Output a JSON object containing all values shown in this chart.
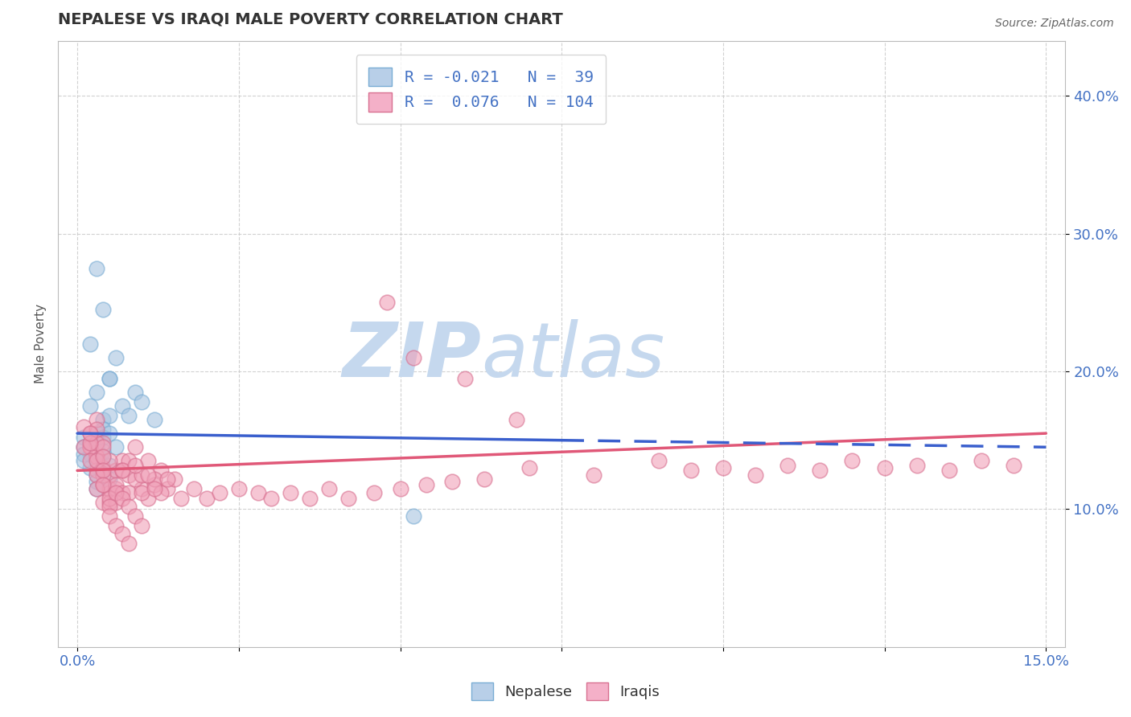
{
  "title": "NEPALESE VS IRAQI MALE POVERTY CORRELATION CHART",
  "source": "Source: ZipAtlas.com",
  "ylabel": "Male Poverty",
  "y_ticks": [
    0.1,
    0.2,
    0.3,
    0.4
  ],
  "y_tick_labels": [
    "10.0%",
    "20.0%",
    "30.0%",
    "40.0%"
  ],
  "x_lim": [
    0.0,
    0.15
  ],
  "y_lim": [
    0.0,
    0.44
  ],
  "nepalese_color": "#a8c4e0",
  "iraqi_color": "#f0a0b8",
  "nepalese_line_color": "#3a5fcd",
  "iraqi_line_color": "#e05878",
  "watermark_zip": "ZIP",
  "watermark_atlas": "atlas",
  "watermark_color_zip": "#c5d8ee",
  "watermark_color_atlas": "#c5d8ee",
  "background_color": "#ffffff",
  "title_color": "#333333",
  "tick_color": "#4472c4",
  "legend_r1": "R = -0.021",
  "legend_n1": "N =  39",
  "legend_r2": "R =  0.076",
  "legend_n2": "N = 104",
  "legend_color": "#4472c4",
  "nepalese_x": [
    0.005,
    0.003,
    0.004,
    0.002,
    0.006,
    0.003,
    0.002,
    0.004,
    0.003,
    0.005,
    0.002,
    0.004,
    0.003,
    0.002,
    0.005,
    0.003,
    0.004,
    0.006,
    0.002,
    0.004,
    0.003,
    0.005,
    0.004,
    0.003,
    0.007,
    0.004,
    0.008,
    0.005,
    0.003,
    0.009,
    0.004,
    0.01,
    0.005,
    0.012,
    0.001,
    0.001,
    0.001,
    0.001,
    0.052
  ],
  "nepalese_y": [
    0.195,
    0.275,
    0.245,
    0.22,
    0.21,
    0.185,
    0.175,
    0.165,
    0.155,
    0.195,
    0.148,
    0.158,
    0.145,
    0.14,
    0.168,
    0.135,
    0.152,
    0.145,
    0.13,
    0.142,
    0.125,
    0.155,
    0.138,
    0.12,
    0.175,
    0.128,
    0.168,
    0.132,
    0.115,
    0.185,
    0.118,
    0.178,
    0.122,
    0.165,
    0.152,
    0.145,
    0.14,
    0.135,
    0.095
  ],
  "iraqi_x": [
    0.002,
    0.003,
    0.004,
    0.001,
    0.003,
    0.002,
    0.004,
    0.003,
    0.005,
    0.002,
    0.004,
    0.003,
    0.005,
    0.002,
    0.004,
    0.006,
    0.003,
    0.005,
    0.007,
    0.004,
    0.006,
    0.003,
    0.005,
    0.007,
    0.004,
    0.006,
    0.008,
    0.005,
    0.007,
    0.009,
    0.006,
    0.008,
    0.01,
    0.007,
    0.009,
    0.011,
    0.008,
    0.01,
    0.012,
    0.009,
    0.011,
    0.013,
    0.01,
    0.012,
    0.014,
    0.011,
    0.013,
    0.015,
    0.012,
    0.014,
    0.016,
    0.018,
    0.02,
    0.022,
    0.025,
    0.028,
    0.03,
    0.033,
    0.036,
    0.039,
    0.042,
    0.046,
    0.05,
    0.054,
    0.058,
    0.063,
    0.001,
    0.002,
    0.003,
    0.002,
    0.003,
    0.004,
    0.003,
    0.004,
    0.005,
    0.004,
    0.005,
    0.006,
    0.005,
    0.007,
    0.006,
    0.008,
    0.007,
    0.009,
    0.008,
    0.01,
    0.07,
    0.08,
    0.09,
    0.095,
    0.1,
    0.105,
    0.11,
    0.115,
    0.12,
    0.125,
    0.13,
    0.135,
    0.14,
    0.145,
    0.048,
    0.052,
    0.06,
    0.068
  ],
  "iraqi_y": [
    0.155,
    0.165,
    0.148,
    0.16,
    0.138,
    0.145,
    0.13,
    0.138,
    0.125,
    0.145,
    0.118,
    0.128,
    0.112,
    0.135,
    0.105,
    0.128,
    0.148,
    0.115,
    0.135,
    0.125,
    0.115,
    0.158,
    0.105,
    0.128,
    0.145,
    0.118,
    0.125,
    0.135,
    0.112,
    0.145,
    0.105,
    0.135,
    0.115,
    0.128,
    0.122,
    0.135,
    0.112,
    0.125,
    0.118,
    0.132,
    0.108,
    0.128,
    0.112,
    0.122,
    0.115,
    0.125,
    0.112,
    0.122,
    0.115,
    0.122,
    0.108,
    0.115,
    0.108,
    0.112,
    0.115,
    0.112,
    0.108,
    0.112,
    0.108,
    0.115,
    0.108,
    0.112,
    0.115,
    0.118,
    0.12,
    0.122,
    0.145,
    0.148,
    0.135,
    0.155,
    0.125,
    0.138,
    0.115,
    0.128,
    0.108,
    0.118,
    0.102,
    0.112,
    0.095,
    0.108,
    0.088,
    0.102,
    0.082,
    0.095,
    0.075,
    0.088,
    0.13,
    0.125,
    0.135,
    0.128,
    0.13,
    0.125,
    0.132,
    0.128,
    0.135,
    0.13,
    0.132,
    0.128,
    0.135,
    0.132,
    0.25,
    0.21,
    0.195,
    0.165
  ]
}
